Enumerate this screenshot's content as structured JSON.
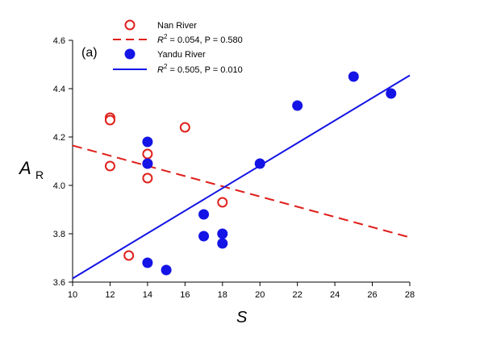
{
  "chart_data": {
    "type": "scatter",
    "panel_label": "(a)",
    "xlabel": "S",
    "ylabel_main": "A",
    "ylabel_sub": "R",
    "xlim": [
      10,
      28
    ],
    "ylim": [
      3.6,
      4.6
    ],
    "xticks": [
      10,
      12,
      14,
      16,
      18,
      20,
      22,
      24,
      26,
      28
    ],
    "yticks": [
      3.6,
      3.8,
      4.0,
      4.2,
      4.4,
      4.6
    ],
    "ytick_labels": [
      "3.6",
      "3.8",
      "4.0",
      "4.2",
      "4.4",
      "4.6"
    ],
    "grid": false,
    "legend_position": "top-left",
    "series": [
      {
        "name": "Nan River",
        "marker": "open-circle",
        "color": "#e0201c",
        "points": [
          {
            "x": 12,
            "y": 4.28
          },
          {
            "x": 12,
            "y": 4.27
          },
          {
            "x": 12,
            "y": 4.08
          },
          {
            "x": 13,
            "y": 3.71
          },
          {
            "x": 14,
            "y": 4.13
          },
          {
            "x": 14,
            "y": 4.09
          },
          {
            "x": 14,
            "y": 4.03
          },
          {
            "x": 16,
            "y": 4.24
          },
          {
            "x": 18,
            "y": 3.93
          }
        ],
        "fit": {
          "style": "dashed",
          "x0": 10,
          "y0": 4.165,
          "x1": 28,
          "y1": 3.785,
          "r2_label": "R",
          "r2_sup": "2",
          "stats_text": " = 0.054, P = 0.580"
        }
      },
      {
        "name": "Yandu River",
        "marker": "filled-circle",
        "color": "#1414e6",
        "points": [
          {
            "x": 14,
            "y": 4.18
          },
          {
            "x": 14,
            "y": 4.09
          },
          {
            "x": 14,
            "y": 3.68
          },
          {
            "x": 15,
            "y": 3.65
          },
          {
            "x": 17,
            "y": 3.88
          },
          {
            "x": 17,
            "y": 3.79
          },
          {
            "x": 18,
            "y": 3.8
          },
          {
            "x": 18,
            "y": 3.76
          },
          {
            "x": 20,
            "y": 4.09
          },
          {
            "x": 22,
            "y": 4.33
          },
          {
            "x": 25,
            "y": 4.45
          },
          {
            "x": 27,
            "y": 4.38
          }
        ],
        "fit": {
          "style": "solid",
          "x0": 10,
          "y0": 3.615,
          "x1": 28,
          "y1": 4.455,
          "r2_label": "R",
          "r2_sup": "2",
          "stats_text": " = 0.505, P = 0.010"
        }
      }
    ]
  }
}
